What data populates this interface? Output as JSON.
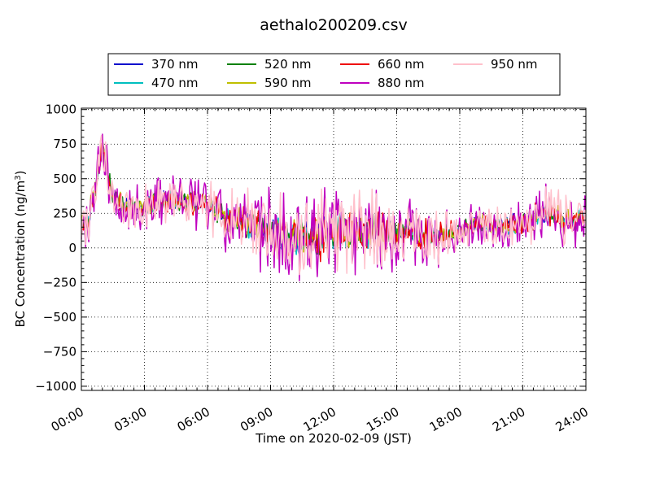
{
  "chart_data": {
    "type": "line",
    "title": "aethalo200209.csv",
    "xlabel": "Time on 2020-02-09 (JST)",
    "ylabel": "BC Concentration (ng/m",
    "ylabel_superscript": "3",
    "ylabel_suffix": ")",
    "x_unit": "hours (JST)",
    "xlim": [
      0,
      24
    ],
    "ylim": [
      -1030,
      1010
    ],
    "x_ticks": [
      0,
      3,
      6,
      9,
      12,
      15,
      18,
      21,
      24
    ],
    "x_tick_labels": [
      "00:00",
      "03:00",
      "06:00",
      "09:00",
      "12:00",
      "15:00",
      "18:00",
      "21:00",
      "24:00"
    ],
    "y_ticks": [
      -1000,
      -750,
      -500,
      -250,
      0,
      250,
      500,
      750,
      1000
    ],
    "y_tick_labels": [
      "−1000",
      "−750",
      "−500",
      "−250",
      "0",
      "250",
      "500",
      "750",
      "1000"
    ],
    "grid": true,
    "legend_position": "top-center",
    "series": [
      {
        "name": "370 nm",
        "color": "#0000cc",
        "jitter": 0.38,
        "seed": 11
      },
      {
        "name": "470 nm",
        "color": "#00bfbf",
        "jitter": 0.4,
        "seed": 23
      },
      {
        "name": "520 nm",
        "color": "#008000",
        "jitter": 0.42,
        "seed": 37
      },
      {
        "name": "590 nm",
        "color": "#bfbf00",
        "jitter": 0.45,
        "seed": 41
      },
      {
        "name": "660 nm",
        "color": "#ee0000",
        "jitter": 0.5,
        "seed": 53
      },
      {
        "name": "880 nm",
        "color": "#bf00bf",
        "jitter": 1.0,
        "seed": 67
      },
      {
        "name": "950 nm",
        "color": "#ffc0cb",
        "jitter": 0.9,
        "seed": 79
      }
    ],
    "baseline": {
      "x": [
        0,
        0.3,
        0.7,
        1.0,
        1.4,
        2.0,
        3.0,
        4.5,
        6.0,
        7.0,
        8.0,
        9.0,
        10.0,
        11.0,
        12.0,
        13.0,
        14.0,
        15.0,
        16.0,
        17.0,
        18.0,
        19.0,
        20.0,
        21.0,
        22.0,
        23.0,
        24.0
      ],
      "y": [
        150,
        200,
        450,
        750,
        400,
        300,
        300,
        350,
        300,
        220,
        180,
        120,
        80,
        60,
        120,
        100,
        130,
        110,
        100,
        90,
        120,
        180,
        160,
        180,
        260,
        200,
        200
      ]
    },
    "noise_amplitude": {
      "x": [
        0,
        1,
        2,
        4,
        6,
        8,
        9,
        10,
        11,
        12,
        13,
        14,
        15,
        17,
        18,
        20,
        22,
        24
      ],
      "y": [
        150,
        200,
        180,
        190,
        200,
        260,
        300,
        320,
        350,
        330,
        360,
        300,
        250,
        200,
        160,
        170,
        200,
        180
      ]
    }
  }
}
